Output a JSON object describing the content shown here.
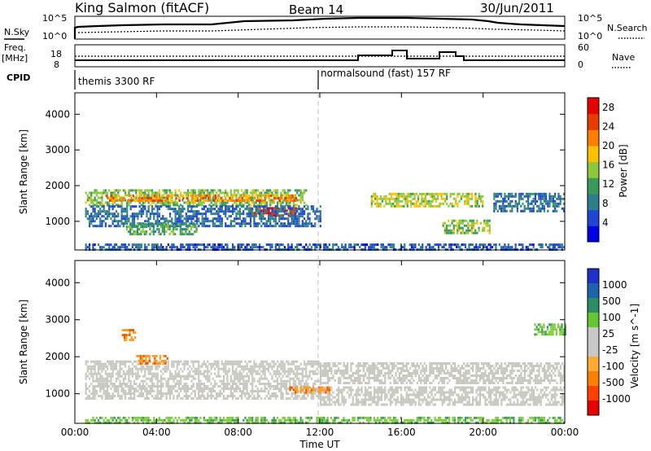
{
  "header": {
    "title": "King Salmon (fitACF)",
    "beam": "Beam 14",
    "date": "30/Jun/2011"
  },
  "status_panels": {
    "nsky_label": "N.Sky",
    "nsky_ticks": [
      "10^5",
      "10^0"
    ],
    "nsearch_label": "N.Search",
    "nsearch_ticks": [
      "10^5",
      "10^0"
    ],
    "freq_label": "Freq.",
    "freq_unit": "[MHz]",
    "freq_ticks": [
      "18",
      "8"
    ],
    "nave_label": "Nave",
    "nave_ticks": [
      "60",
      "0"
    ],
    "cpid_label": "CPID",
    "cpid_segments": [
      {
        "label": "themis 3300 RF",
        "start_hour": 0
      },
      {
        "label": "normalsound (fast) 157 RF",
        "start_hour": 12
      }
    ]
  },
  "colors": {
    "power_scale": [
      "#0000e6",
      "#1e46d2",
      "#2e7d8c",
      "#3a9a5a",
      "#8cc83c",
      "#ffc000",
      "#ff8000",
      "#e63c00",
      "#e60000"
    ],
    "velocity_scale": [
      "#e60000",
      "#ff4000",
      "#ff8000",
      "#ffaa30",
      "#c8c8c8",
      "#c8c8c8",
      "#64c832",
      "#2e8c64",
      "#1e64aa",
      "#1e32c8"
    ],
    "ground_scatter": "#c8c8c0",
    "dashed_line": "#c0c0c0"
  },
  "chart_data": [
    {
      "type": "heatmap",
      "name": "power",
      "xlabel": "Time UT",
      "ylabel": "Slant Range [km]",
      "x_ticks": [
        "00:00",
        "04:00",
        "08:00",
        "12:00",
        "16:00",
        "20:00",
        "00:00"
      ],
      "xlim_hours": [
        0,
        24
      ],
      "y_ticks": [
        1000,
        2000,
        3000,
        4000
      ],
      "ylim": [
        200,
        4600
      ],
      "colorbar_label": "Power [dB]",
      "colorbar_ticks": [
        4,
        8,
        12,
        16,
        20,
        24,
        28
      ],
      "colorbar_range": [
        0,
        30
      ],
      "bands": [
        {
          "t0": 0.5,
          "t1": 11.3,
          "r0": 1450,
          "r1": 1900,
          "level": 14
        },
        {
          "t0": 1.5,
          "t1": 10.8,
          "r0": 1550,
          "r1": 1750,
          "level": 22
        },
        {
          "t0": 8.5,
          "t1": 10.8,
          "r0": 1150,
          "r1": 1400,
          "level": 28
        },
        {
          "t0": 0.5,
          "t1": 12.0,
          "r0": 900,
          "r1": 1450,
          "level": 6
        },
        {
          "t0": 0.5,
          "t1": 24.0,
          "r0": 220,
          "r1": 380,
          "level": 5
        },
        {
          "t0": 14.5,
          "t1": 20.0,
          "r0": 1400,
          "r1": 1800,
          "level": 16
        },
        {
          "t0": 18.0,
          "t1": 20.3,
          "r0": 700,
          "r1": 1050,
          "level": 14
        },
        {
          "t0": 20.5,
          "t1": 24.0,
          "r0": 1300,
          "r1": 1800,
          "level": 7
        },
        {
          "t0": 2.5,
          "t1": 6.0,
          "r0": 650,
          "r1": 950,
          "level": 12
        }
      ]
    },
    {
      "type": "heatmap",
      "name": "velocity",
      "xlabel": "Time UT",
      "ylabel": "Slant Range [km]",
      "x_ticks": [
        "00:00",
        "04:00",
        "08:00",
        "12:00",
        "16:00",
        "20:00",
        "00:00"
      ],
      "xlim_hours": [
        0,
        24
      ],
      "y_ticks": [
        1000,
        2000,
        3000,
        4000
      ],
      "ylim": [
        200,
        4600
      ],
      "colorbar_label": "Velocity [m s^-1]",
      "colorbar_ticks": [
        "1000",
        "500",
        "100",
        "25",
        "-25",
        "-100",
        "-500",
        "-1000"
      ],
      "bands": [
        {
          "t0": 0.5,
          "t1": 12.0,
          "r0": 1350,
          "r1": 1900,
          "kind": "ground"
        },
        {
          "t0": 0.5,
          "t1": 12.0,
          "r0": 850,
          "r1": 1300,
          "kind": "ground"
        },
        {
          "t0": 12.0,
          "t1": 24.0,
          "r0": 1300,
          "r1": 1850,
          "kind": "ground"
        },
        {
          "t0": 12.0,
          "t1": 24.0,
          "r0": 700,
          "r1": 1200,
          "kind": "ground"
        },
        {
          "t0": 3.0,
          "t1": 4.5,
          "r0": 1850,
          "r1": 2050,
          "kind": "orange"
        },
        {
          "t0": 2.3,
          "t1": 3.0,
          "r0": 2450,
          "r1": 2750,
          "kind": "orange"
        },
        {
          "t0": 10.5,
          "t1": 12.5,
          "r0": 1050,
          "r1": 1200,
          "kind": "orange"
        },
        {
          "t0": 0.5,
          "t1": 24.0,
          "r0": 220,
          "r1": 380,
          "kind": "green"
        },
        {
          "t0": 22.5,
          "t1": 24.0,
          "r0": 2600,
          "r1": 2900,
          "kind": "green"
        }
      ]
    }
  ]
}
